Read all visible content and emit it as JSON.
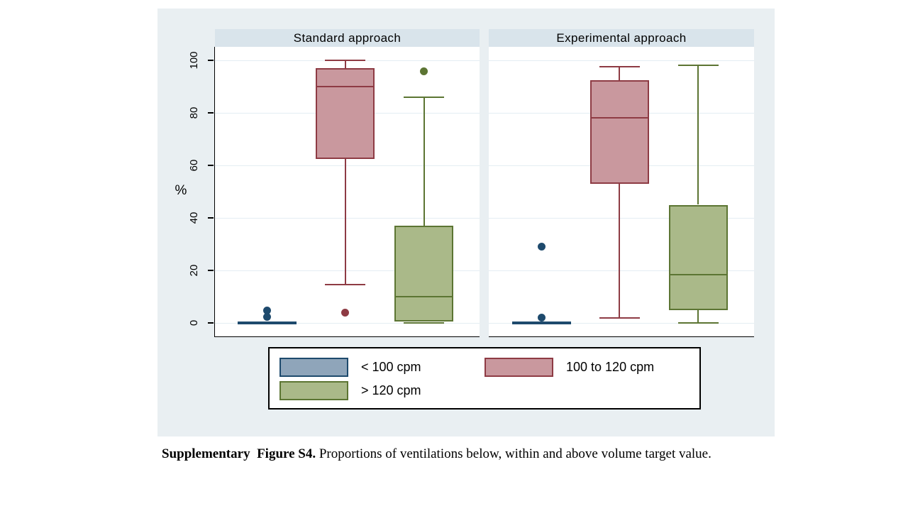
{
  "figure": {
    "caption_bold": "Supplementary  Figure S4.",
    "caption_rest": " Proportions of ventilations below, within and above volume target value."
  },
  "colors": {
    "figure_bg": "#e9eff2",
    "band_bg": "#d9e4eb",
    "plot_bg": "#ffffff",
    "gridline": "#e4edf3",
    "axis": "#000000",
    "blue_fill": "#8fa5ba",
    "blue_line": "#1e4a6d",
    "red_fill": "#c9989e",
    "red_line": "#8e3b44",
    "green_fill": "#aab989",
    "green_line": "#5c7533"
  },
  "legend": {
    "items": [
      {
        "label": "< 100 cpm",
        "color": "blue"
      },
      {
        "label": "100 to 120 cpm",
        "color": "red"
      },
      {
        "label": "> 120 cpm",
        "color": "green"
      }
    ]
  },
  "chart_data": {
    "type": "boxplot",
    "ylabel": "%",
    "ylim": [
      0,
      100
    ],
    "yticks": [
      0,
      20,
      40,
      60,
      80,
      100
    ],
    "grid": true,
    "legend_position": "bottom",
    "panels": [
      {
        "title": "Standard approach",
        "boxes": [
          {
            "group": "< 100 cpm",
            "color": "blue",
            "whisker_low": 0,
            "q1": 0,
            "median": 0,
            "q3": 0.5,
            "whisker_high": 0.5,
            "outliers": [
              2.2,
              4.6
            ]
          },
          {
            "group": "100 to 120 cpm",
            "color": "red",
            "whisker_low": 14.5,
            "q1": 62.5,
            "median": 90,
            "q3": 97,
            "whisker_high": 100,
            "outliers": [
              4
            ]
          },
          {
            "group": "> 120 cpm",
            "color": "green",
            "whisker_low": 0,
            "q1": 0.5,
            "median": 10,
            "q3": 37,
            "whisker_high": 86,
            "outliers": [
              95.7
            ]
          }
        ]
      },
      {
        "title": "Experimental approach",
        "boxes": [
          {
            "group": "< 100 cpm",
            "color": "blue",
            "whisker_low": 0,
            "q1": 0,
            "median": 0,
            "q3": 0.5,
            "whisker_high": 0.5,
            "outliers": [
              2,
              29
            ]
          },
          {
            "group": "100 to 120 cpm",
            "color": "red",
            "whisker_low": 2,
            "q1": 53,
            "median": 78,
            "q3": 92.5,
            "whisker_high": 97.5,
            "outliers": []
          },
          {
            "group": "> 120 cpm",
            "color": "green",
            "whisker_low": 0,
            "q1": 5,
            "median": 18.5,
            "q3": 45,
            "whisker_high": 98,
            "outliers": []
          }
        ]
      }
    ]
  }
}
